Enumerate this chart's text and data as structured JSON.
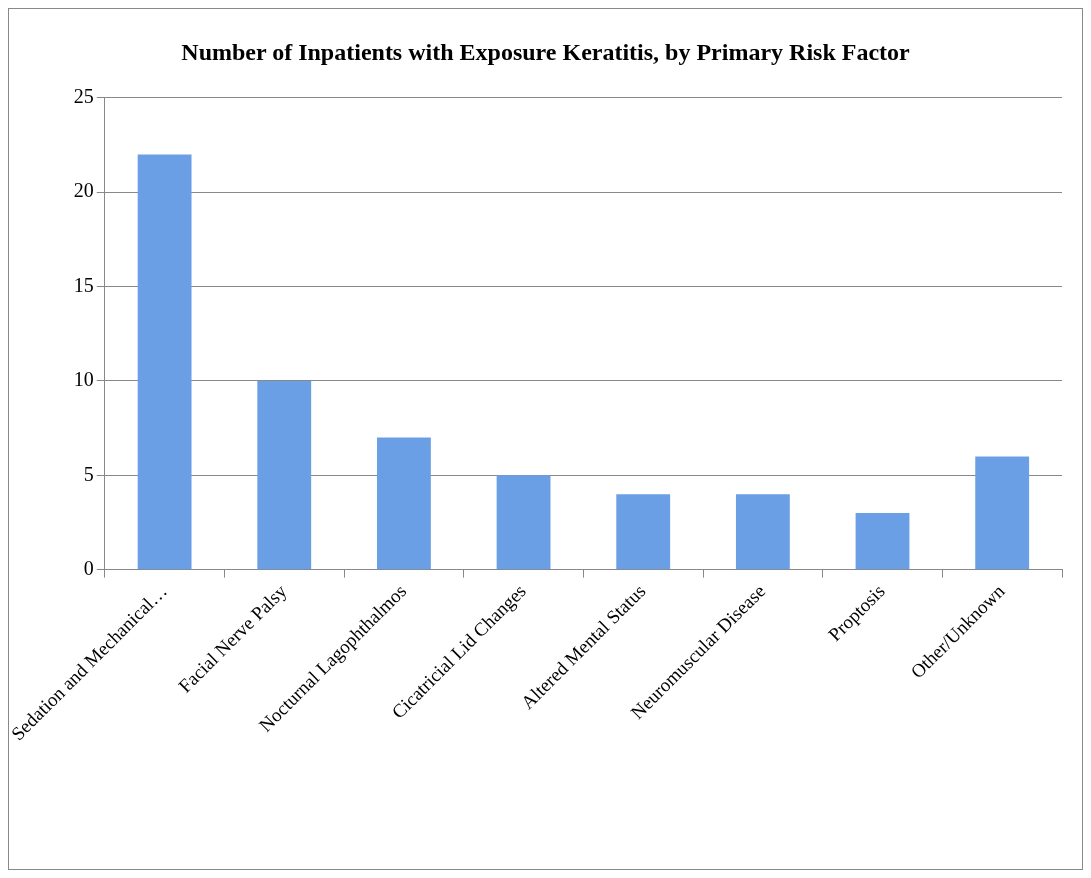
{
  "chart_data": {
    "type": "bar",
    "title": "Number of Inpatients with Exposure Keratitis, by Primary Risk Factor",
    "categories": [
      "Sedation and Mechanical…",
      "Facial Nerve Palsy",
      "Nocturnal Lagophthalmos",
      "Cicatricial Lid Changes",
      "Altered Mental Status",
      "Neuromuscular Disease",
      "Proptosis",
      "Other/Unknown"
    ],
    "values": [
      22,
      10,
      7,
      5,
      4,
      4,
      3,
      6
    ],
    "color": "#6a9fe6",
    "ylim": [
      0,
      25
    ],
    "yticks": [
      0,
      5,
      10,
      15,
      20,
      25
    ],
    "grid": "y",
    "legend": false
  }
}
